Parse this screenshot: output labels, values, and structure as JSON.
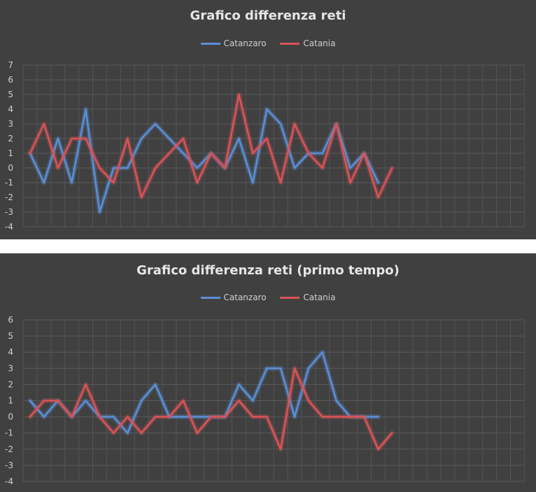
{
  "chart_data": [
    {
      "type": "line",
      "title": "Grafico differenza reti",
      "ylim": [
        -4,
        7
      ],
      "yticks": [
        7,
        6,
        5,
        4,
        3,
        2,
        1,
        0,
        -1,
        -2,
        -3,
        -4
      ],
      "grid": true,
      "legend_position": "top",
      "series": [
        {
          "name": "Catanzaro",
          "color": "#5b8fd6",
          "values": [
            1,
            -1,
            2,
            -1,
            4,
            -3,
            0,
            0,
            2,
            3,
            2,
            1,
            0,
            1,
            0,
            2,
            -1,
            4,
            3,
            0,
            1,
            1,
            3,
            0,
            1,
            -1
          ]
        },
        {
          "name": "Catania",
          "color": "#d95457",
          "values": [
            1,
            3,
            0,
            2,
            2,
            0,
            -1,
            2,
            -2,
            0,
            1,
            2,
            -1,
            1,
            0,
            5,
            1,
            2,
            -1,
            3,
            1,
            0,
            3,
            -1,
            1,
            -2,
            0
          ]
        }
      ]
    },
    {
      "type": "line",
      "title": "Grafico differenza reti (primo tempo)",
      "ylim": [
        -4,
        6
      ],
      "yticks": [
        6,
        5,
        4,
        3,
        2,
        1,
        0,
        -1,
        -2,
        -3,
        -4
      ],
      "grid": true,
      "legend_position": "top",
      "series": [
        {
          "name": "Catanzaro",
          "color": "#5b8fd6",
          "values": [
            1,
            0,
            1,
            0,
            1,
            0,
            0,
            -1,
            1,
            2,
            0,
            0,
            0,
            0,
            0,
            2,
            1,
            3,
            3,
            0,
            3,
            4,
            1,
            0,
            0,
            0
          ]
        },
        {
          "name": "Catania",
          "color": "#d95457",
          "values": [
            0,
            1,
            1,
            0,
            2,
            0,
            -1,
            0,
            -1,
            0,
            0,
            1,
            -1,
            0,
            0,
            1,
            0,
            0,
            -2,
            3,
            1,
            0,
            0,
            0,
            0,
            -2,
            -1
          ]
        }
      ]
    }
  ]
}
